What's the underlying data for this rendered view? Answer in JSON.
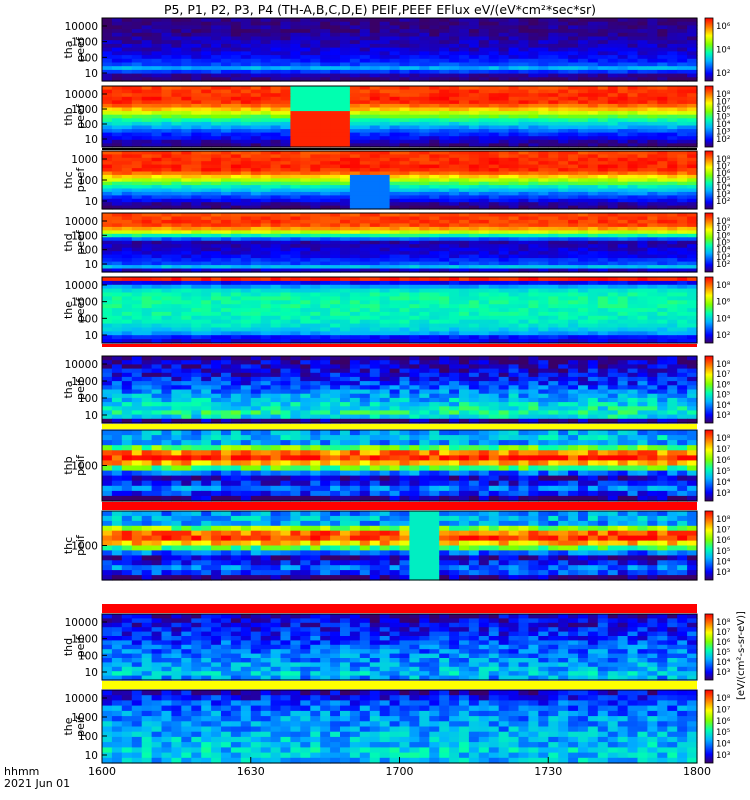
{
  "chart_data": {
    "type": "heatmap",
    "title": "P5, P1, P2, P3, P4 (TH-A,B,C,D,E) PEIF,PEEF EFlux eV/(eV*cm²*sec*sr)",
    "x_label_line1": "hhmm",
    "x_label_line2": "2021 Jun 01",
    "x_ticks": [
      "1600",
      "1630",
      "1700",
      "1730",
      "1800"
    ],
    "xlim_hhmm": [
      "1600",
      "1800"
    ],
    "colorbar_label": "[eV/(cm²-s-sr-eV)]",
    "panels": [
      {
        "name": "tha_peef",
        "label1": "tha",
        "label2": "peef",
        "yticks": [
          "10000",
          "1000",
          "100",
          "10"
        ],
        "log_scale": true,
        "profile": [
          0.02,
          0.05,
          0.18,
          0.32,
          0.2,
          0.15,
          0.12,
          0.1,
          0.08,
          0.07,
          0.06,
          0.05,
          0.04,
          0.03,
          0.03,
          0.02,
          0.02
        ],
        "colorbar_ticks": [
          "10⁶",
          "10⁴",
          "10²"
        ]
      },
      {
        "name": "thb_peef",
        "label1": "thb",
        "label2": "peef",
        "yticks": [
          "10000",
          "1000",
          "100",
          "10"
        ],
        "log_scale": true,
        "profile": [
          0.03,
          0.06,
          0.12,
          0.16,
          0.22,
          0.3,
          0.38,
          0.46,
          0.55,
          0.66,
          0.78,
          0.88,
          0.95,
          0.96,
          0.95,
          0.94,
          0.93
        ],
        "colorbar_ticks": [
          "10⁸",
          "10⁷",
          "10⁶",
          "10⁵",
          "10⁴",
          "10³",
          "10²"
        ]
      },
      {
        "name": "thc_peef",
        "label1": "thc",
        "label2": "peef",
        "yticks": [
          "1000",
          "100",
          "10"
        ],
        "log_scale": true,
        "profile": [
          0.02,
          0.05,
          0.12,
          0.18,
          0.26,
          0.34,
          0.42,
          0.52,
          0.64,
          0.76,
          0.88,
          0.95,
          0.96,
          0.96,
          0.95,
          0.94,
          0.93
        ],
        "colorbar_ticks": [
          "10⁸",
          "10⁷",
          "10⁶",
          "10⁵",
          "10⁴",
          "10³",
          "10²"
        ]
      },
      {
        "name": "thd_peef",
        "label1": "thd",
        "label2": "peef",
        "yticks": [
          "10000",
          "1000",
          "100",
          "10"
        ],
        "log_scale": true,
        "profile": [
          0.08,
          0.34,
          0.2,
          0.16,
          0.12,
          0.1,
          0.08,
          0.07,
          0.06,
          0.22,
          0.45,
          0.66,
          0.82,
          0.92,
          0.94,
          0.93,
          0.92
        ],
        "colorbar_ticks": [
          "10⁸",
          "10⁷",
          "10⁶",
          "10⁵",
          "10⁴",
          "10³",
          "10²"
        ]
      },
      {
        "name": "the_peef",
        "label1": "the",
        "label2": "peef",
        "yticks": [
          "10000",
          "1000",
          "100",
          "10"
        ],
        "log_scale": true,
        "profile": [
          0.1,
          0.14,
          0.3,
          0.36,
          0.4,
          0.42,
          0.43,
          0.44,
          0.44,
          0.45,
          0.45,
          0.45,
          0.44,
          0.4,
          0.3,
          0.12,
          0.96
        ],
        "colorbar_ticks": [
          "10⁸",
          "10⁶",
          "10⁴",
          "10²"
        ]
      },
      {
        "name": "tha_peif",
        "label1": "tha",
        "label2": "peif",
        "yticks": [
          "10000",
          "1000",
          "100",
          "10"
        ],
        "log_scale": true,
        "profile": [
          0.03,
          0.4,
          0.44,
          0.42,
          0.38,
          0.34,
          0.3,
          0.26,
          0.22,
          0.18,
          0.15,
          0.12,
          0.1,
          0.08,
          0.06,
          0.02
        ],
        "colorbar_ticks": [
          "10⁸",
          "10⁷",
          "10⁶",
          "10⁵",
          "10⁴",
          "10³"
        ]
      },
      {
        "name": "thb_peif",
        "label1": "thb",
        "label2": "peif",
        "yticks": [
          "1000"
        ],
        "log_scale": true,
        "profile": [
          0.02,
          0.18,
          0.25,
          0.14,
          0.06,
          0.24,
          0.52,
          0.8,
          0.96,
          0.85,
          0.55,
          0.3,
          0.35,
          0.3
        ],
        "colorbar_ticks": [
          "10⁸",
          "10⁷",
          "10⁶",
          "10⁵",
          "10⁴",
          "10³"
        ]
      },
      {
        "name": "thc_peif",
        "label1": "thc",
        "label2": "peif",
        "yticks": [
          "1000"
        ],
        "log_scale": true,
        "profile": [
          0.02,
          0.18,
          0.24,
          0.14,
          0.06,
          0.24,
          0.5,
          0.78,
          0.95,
          0.88,
          0.58,
          0.3,
          0.32,
          0.28
        ],
        "colorbar_ticks": [
          "10⁸",
          "10⁷",
          "10⁶",
          "10⁵",
          "10⁴",
          "10³"
        ]
      },
      {
        "name": "thd_peif",
        "label1": "thd",
        "label2": "peif",
        "yticks": [
          "10000",
          "1000",
          "100",
          "10"
        ],
        "log_scale": true,
        "profile": [
          0.3,
          0.34,
          0.32,
          0.3,
          0.28,
          0.26,
          0.24,
          0.22,
          0.2,
          0.18,
          0.16,
          0.14,
          0.12,
          0.1,
          0.06
        ],
        "colorbar_ticks": [
          "10⁸",
          "10⁷",
          "10⁶",
          "10⁵",
          "10⁴",
          "10³"
        ]
      },
      {
        "name": "the_peif",
        "label1": "the",
        "label2": "peif",
        "yticks": [
          "10000",
          "1000",
          "100",
          "10"
        ],
        "log_scale": true,
        "profile": [
          0.34,
          0.36,
          0.36,
          0.34,
          0.33,
          0.32,
          0.3,
          0.29,
          0.28,
          0.26,
          0.24,
          0.2,
          0.15,
          0.08
        ],
        "colorbar_ticks": [
          "10⁸",
          "10⁷",
          "10⁶",
          "10⁵",
          "10⁴",
          "10³"
        ]
      }
    ]
  }
}
